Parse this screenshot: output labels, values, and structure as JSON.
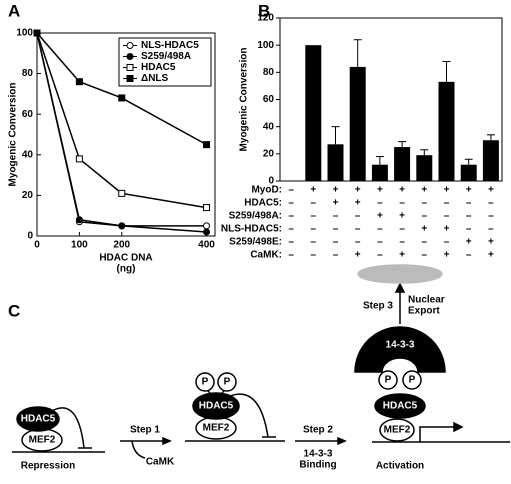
{
  "chart_data": [
    {
      "type": "line",
      "panel": "A",
      "xlabel": "HDAC DNA",
      "xunit": "(ng)",
      "ylabel": "Myogenic Conversion",
      "x": [
        0,
        100,
        200,
        400
      ],
      "xlim": [
        0,
        420
      ],
      "xticks": [
        0,
        100,
        200,
        400
      ],
      "ylim": [
        0,
        100
      ],
      "yticks": [
        0,
        20,
        40,
        60,
        80,
        100
      ],
      "legend": "upper right",
      "series": [
        {
          "name": "NLS-HDAC5",
          "color": "#000000",
          "marker": "circle",
          "filled": false,
          "values": [
            100,
            7,
            5,
            5
          ]
        },
        {
          "name": "S259/498A",
          "color": "#000000",
          "marker": "circle",
          "filled": true,
          "values": [
            100,
            8,
            5,
            2
          ]
        },
        {
          "name": "HDAC5",
          "color": "#000000",
          "marker": "square",
          "filled": false,
          "values": [
            100,
            38,
            21,
            14
          ]
        },
        {
          "name": "ΔNLS",
          "color": "#000000",
          "marker": "square",
          "filled": true,
          "values": [
            100,
            76,
            68,
            45
          ]
        }
      ]
    },
    {
      "type": "bar",
      "panel": "B",
      "ylabel": "Myogenic Conversion",
      "color": "#000000",
      "categories": [
        null,
        null,
        null,
        null,
        null,
        null,
        null,
        null,
        null,
        null
      ],
      "values": [
        0,
        100,
        27,
        84,
        12,
        25,
        19,
        73,
        12,
        30
      ],
      "errors": [
        0,
        0,
        13,
        20,
        6,
        4,
        4,
        15,
        4,
        4
      ],
      "ylim": [
        0,
        120
      ],
      "yticks": [
        0,
        20,
        40,
        60,
        80,
        100,
        120
      ],
      "conditions": [
        {
          "name": "MyoD:",
          "signs": [
            "–",
            "+",
            "+",
            "+",
            "+",
            "+",
            "+",
            "+",
            "+",
            "+"
          ]
        },
        {
          "name": "HDAC5:",
          "signs": [
            "–",
            "–",
            "+",
            "+",
            "–",
            "–",
            "–",
            "–",
            "–",
            "–"
          ]
        },
        {
          "name": "S259/498A:",
          "signs": [
            "–",
            "–",
            "–",
            "–",
            "+",
            "+",
            "–",
            "–",
            "–",
            "–"
          ]
        },
        {
          "name": "NLS-HDAC5:",
          "signs": [
            "–",
            "–",
            "–",
            "–",
            "–",
            "–",
            "+",
            "+",
            "–",
            "–"
          ]
        },
        {
          "name": "S259/498E:",
          "signs": [
            "–",
            "–",
            "–",
            "–",
            "–",
            "–",
            "–",
            "–",
            "+",
            "+"
          ]
        },
        {
          "name": "CaMK:",
          "signs": [
            "–",
            "–",
            "–",
            "+",
            "–",
            "+",
            "–",
            "+",
            "–",
            "+"
          ]
        }
      ]
    }
  ],
  "diagram": {
    "panel": "C",
    "stage1": {
      "hdac": "HDAC5",
      "mef": "MEF2",
      "label": "Repression"
    },
    "step1": {
      "label": "Step 1",
      "agent": "CaMK"
    },
    "stage2": {
      "p1": "P",
      "p2": "P",
      "hdac": "HDAC5",
      "mef": "MEF2"
    },
    "step2": {
      "label": "Step 2",
      "agent1": "14-3-3",
      "agent2": "Binding"
    },
    "stage3": {
      "mef": "MEF2",
      "label": "Activation"
    },
    "complex": {
      "protein": "14-3-3",
      "p1": "P",
      "p2": "P",
      "hdac": "HDAC5"
    },
    "step3": {
      "label": "Step 3",
      "dest1": "Nuclear",
      "dest2": "Export"
    }
  }
}
